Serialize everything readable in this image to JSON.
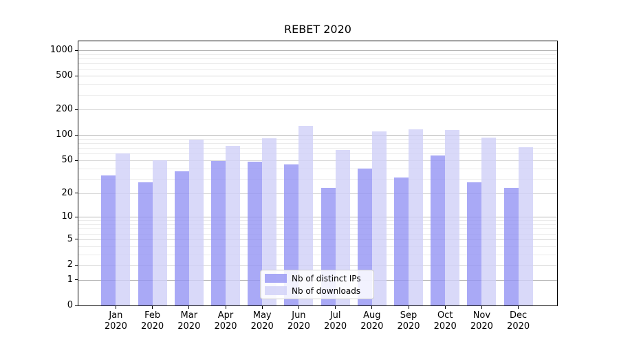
{
  "title": "REBET 2020",
  "colors": {
    "ips": "rgba(148,148,244,0.8)",
    "downloads": "rgba(208,208,248,0.8)",
    "ips_hex": "#a9a9f6",
    "downloads_hex": "#d9d9f9",
    "grid_major": "#b4b4b4",
    "grid_mid": "#d7d7d7",
    "grid_minor": "#ebebeb",
    "axis": "#000000"
  },
  "legend": {
    "items": [
      "Nb of distinct IPs",
      "Nb of downloads"
    ],
    "position": "lower center"
  },
  "chart_data": {
    "type": "bar",
    "title": "REBET 2020",
    "categories": [
      "Jan 2020",
      "Feb 2020",
      "Mar 2020",
      "Apr 2020",
      "May 2020",
      "Jun 2020",
      "Jul 2020",
      "Aug 2020",
      "Sep 2020",
      "Oct 2020",
      "Nov 2020",
      "Dec 2020"
    ],
    "x_tick_labels": [
      {
        "line1": "Jan",
        "line2": "2020"
      },
      {
        "line1": "Feb",
        "line2": "2020"
      },
      {
        "line1": "Mar",
        "line2": "2020"
      },
      {
        "line1": "Apr",
        "line2": "2020"
      },
      {
        "line1": "May",
        "line2": "2020"
      },
      {
        "line1": "Jun",
        "line2": "2020"
      },
      {
        "line1": "Jul",
        "line2": "2020"
      },
      {
        "line1": "Aug",
        "line2": "2020"
      },
      {
        "line1": "Sep",
        "line2": "2020"
      },
      {
        "line1": "Oct",
        "line2": "2020"
      },
      {
        "line1": "Nov",
        "line2": "2020"
      },
      {
        "line1": "Dec",
        "line2": "2020"
      }
    ],
    "series": [
      {
        "name": "Nb of distinct IPs",
        "values": [
          33,
          27,
          37,
          49,
          48,
          45,
          23,
          40,
          31,
          57,
          27,
          23
        ]
      },
      {
        "name": "Nb of downloads",
        "values": [
          61,
          50,
          89,
          74,
          91,
          128,
          67,
          110,
          118,
          115,
          94,
          72
        ]
      }
    ],
    "y_scale": "log10(1+y)",
    "y_ticks": [
      0,
      1,
      2,
      5,
      10,
      20,
      50,
      100,
      200,
      500,
      1000
    ],
    "y_minor_ticks": [
      3,
      4,
      6,
      7,
      8,
      9,
      30,
      40,
      60,
      70,
      80,
      90,
      300,
      400,
      600,
      700,
      800,
      900
    ],
    "ylim": [
      0,
      1280
    ],
    "grid": true,
    "legend_position": "lower center"
  }
}
